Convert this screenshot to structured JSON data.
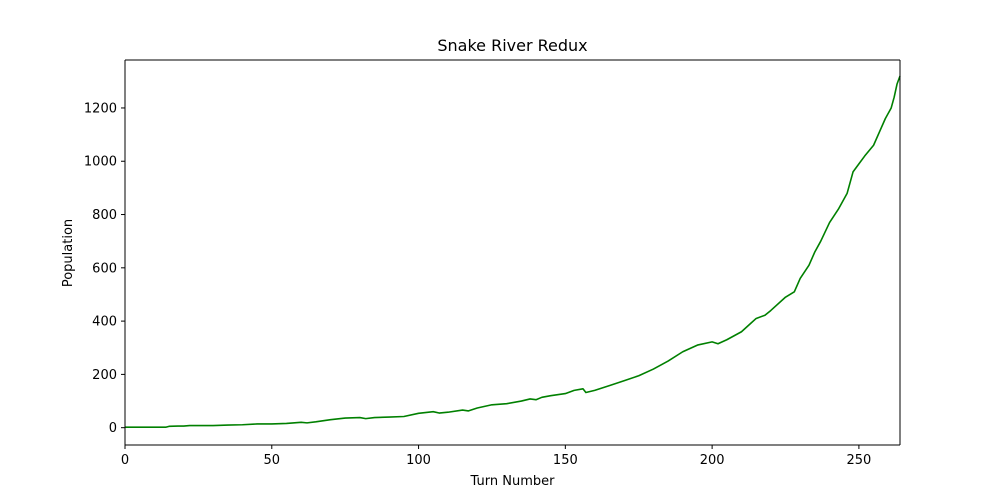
{
  "chart_data": {
    "type": "line",
    "title": "Snake River Redux",
    "xlabel": "Turn Number",
    "ylabel": "Population",
    "xlim": [
      0,
      264
    ],
    "ylim": [
      -65,
      1380
    ],
    "xticks": [
      "0",
      "50",
      "100",
      "150",
      "200",
      "250"
    ],
    "yticks": [
      "0",
      "200",
      "400",
      "600",
      "800",
      "1000",
      "1200"
    ],
    "grid": false,
    "legend": "none",
    "colors": {
      "line": "#008000",
      "axis": "#000000"
    },
    "series": [
      {
        "points": [
          [
            0,
            2
          ],
          [
            5,
            2
          ],
          [
            10,
            2
          ],
          [
            14,
            2
          ],
          [
            15,
            5
          ],
          [
            18,
            6
          ],
          [
            20,
            6
          ],
          [
            22,
            8
          ],
          [
            25,
            8
          ],
          [
            30,
            8
          ],
          [
            35,
            10
          ],
          [
            40,
            11
          ],
          [
            45,
            14
          ],
          [
            50,
            14
          ],
          [
            55,
            16
          ],
          [
            60,
            20
          ],
          [
            62,
            18
          ],
          [
            65,
            22
          ],
          [
            70,
            30
          ],
          [
            75,
            36
          ],
          [
            80,
            38
          ],
          [
            82,
            34
          ],
          [
            85,
            38
          ],
          [
            90,
            40
          ],
          [
            95,
            42
          ],
          [
            100,
            54
          ],
          [
            105,
            60
          ],
          [
            107,
            55
          ],
          [
            110,
            58
          ],
          [
            115,
            66
          ],
          [
            117,
            63
          ],
          [
            120,
            74
          ],
          [
            125,
            86
          ],
          [
            130,
            90
          ],
          [
            135,
            100
          ],
          [
            138,
            108
          ],
          [
            140,
            105
          ],
          [
            142,
            114
          ],
          [
            145,
            120
          ],
          [
            150,
            128
          ],
          [
            153,
            140
          ],
          [
            156,
            146
          ],
          [
            157,
            132
          ],
          [
            160,
            140
          ],
          [
            165,
            158
          ],
          [
            170,
            176
          ],
          [
            175,
            195
          ],
          [
            180,
            220
          ],
          [
            185,
            250
          ],
          [
            190,
            285
          ],
          [
            195,
            310
          ],
          [
            200,
            322
          ],
          [
            202,
            315
          ],
          [
            205,
            330
          ],
          [
            210,
            360
          ],
          [
            213,
            390
          ],
          [
            215,
            410
          ],
          [
            218,
            422
          ],
          [
            220,
            440
          ],
          [
            225,
            490
          ],
          [
            228,
            510
          ],
          [
            230,
            560
          ],
          [
            233,
            610
          ],
          [
            235,
            660
          ],
          [
            237,
            700
          ],
          [
            240,
            770
          ],
          [
            243,
            820
          ],
          [
            246,
            880
          ],
          [
            248,
            960
          ],
          [
            250,
            990
          ],
          [
            252,
            1020
          ],
          [
            255,
            1060
          ],
          [
            257,
            1110
          ],
          [
            259,
            1160
          ],
          [
            261,
            1200
          ],
          [
            262,
            1240
          ],
          [
            263,
            1290
          ],
          [
            264,
            1320
          ]
        ]
      }
    ]
  }
}
